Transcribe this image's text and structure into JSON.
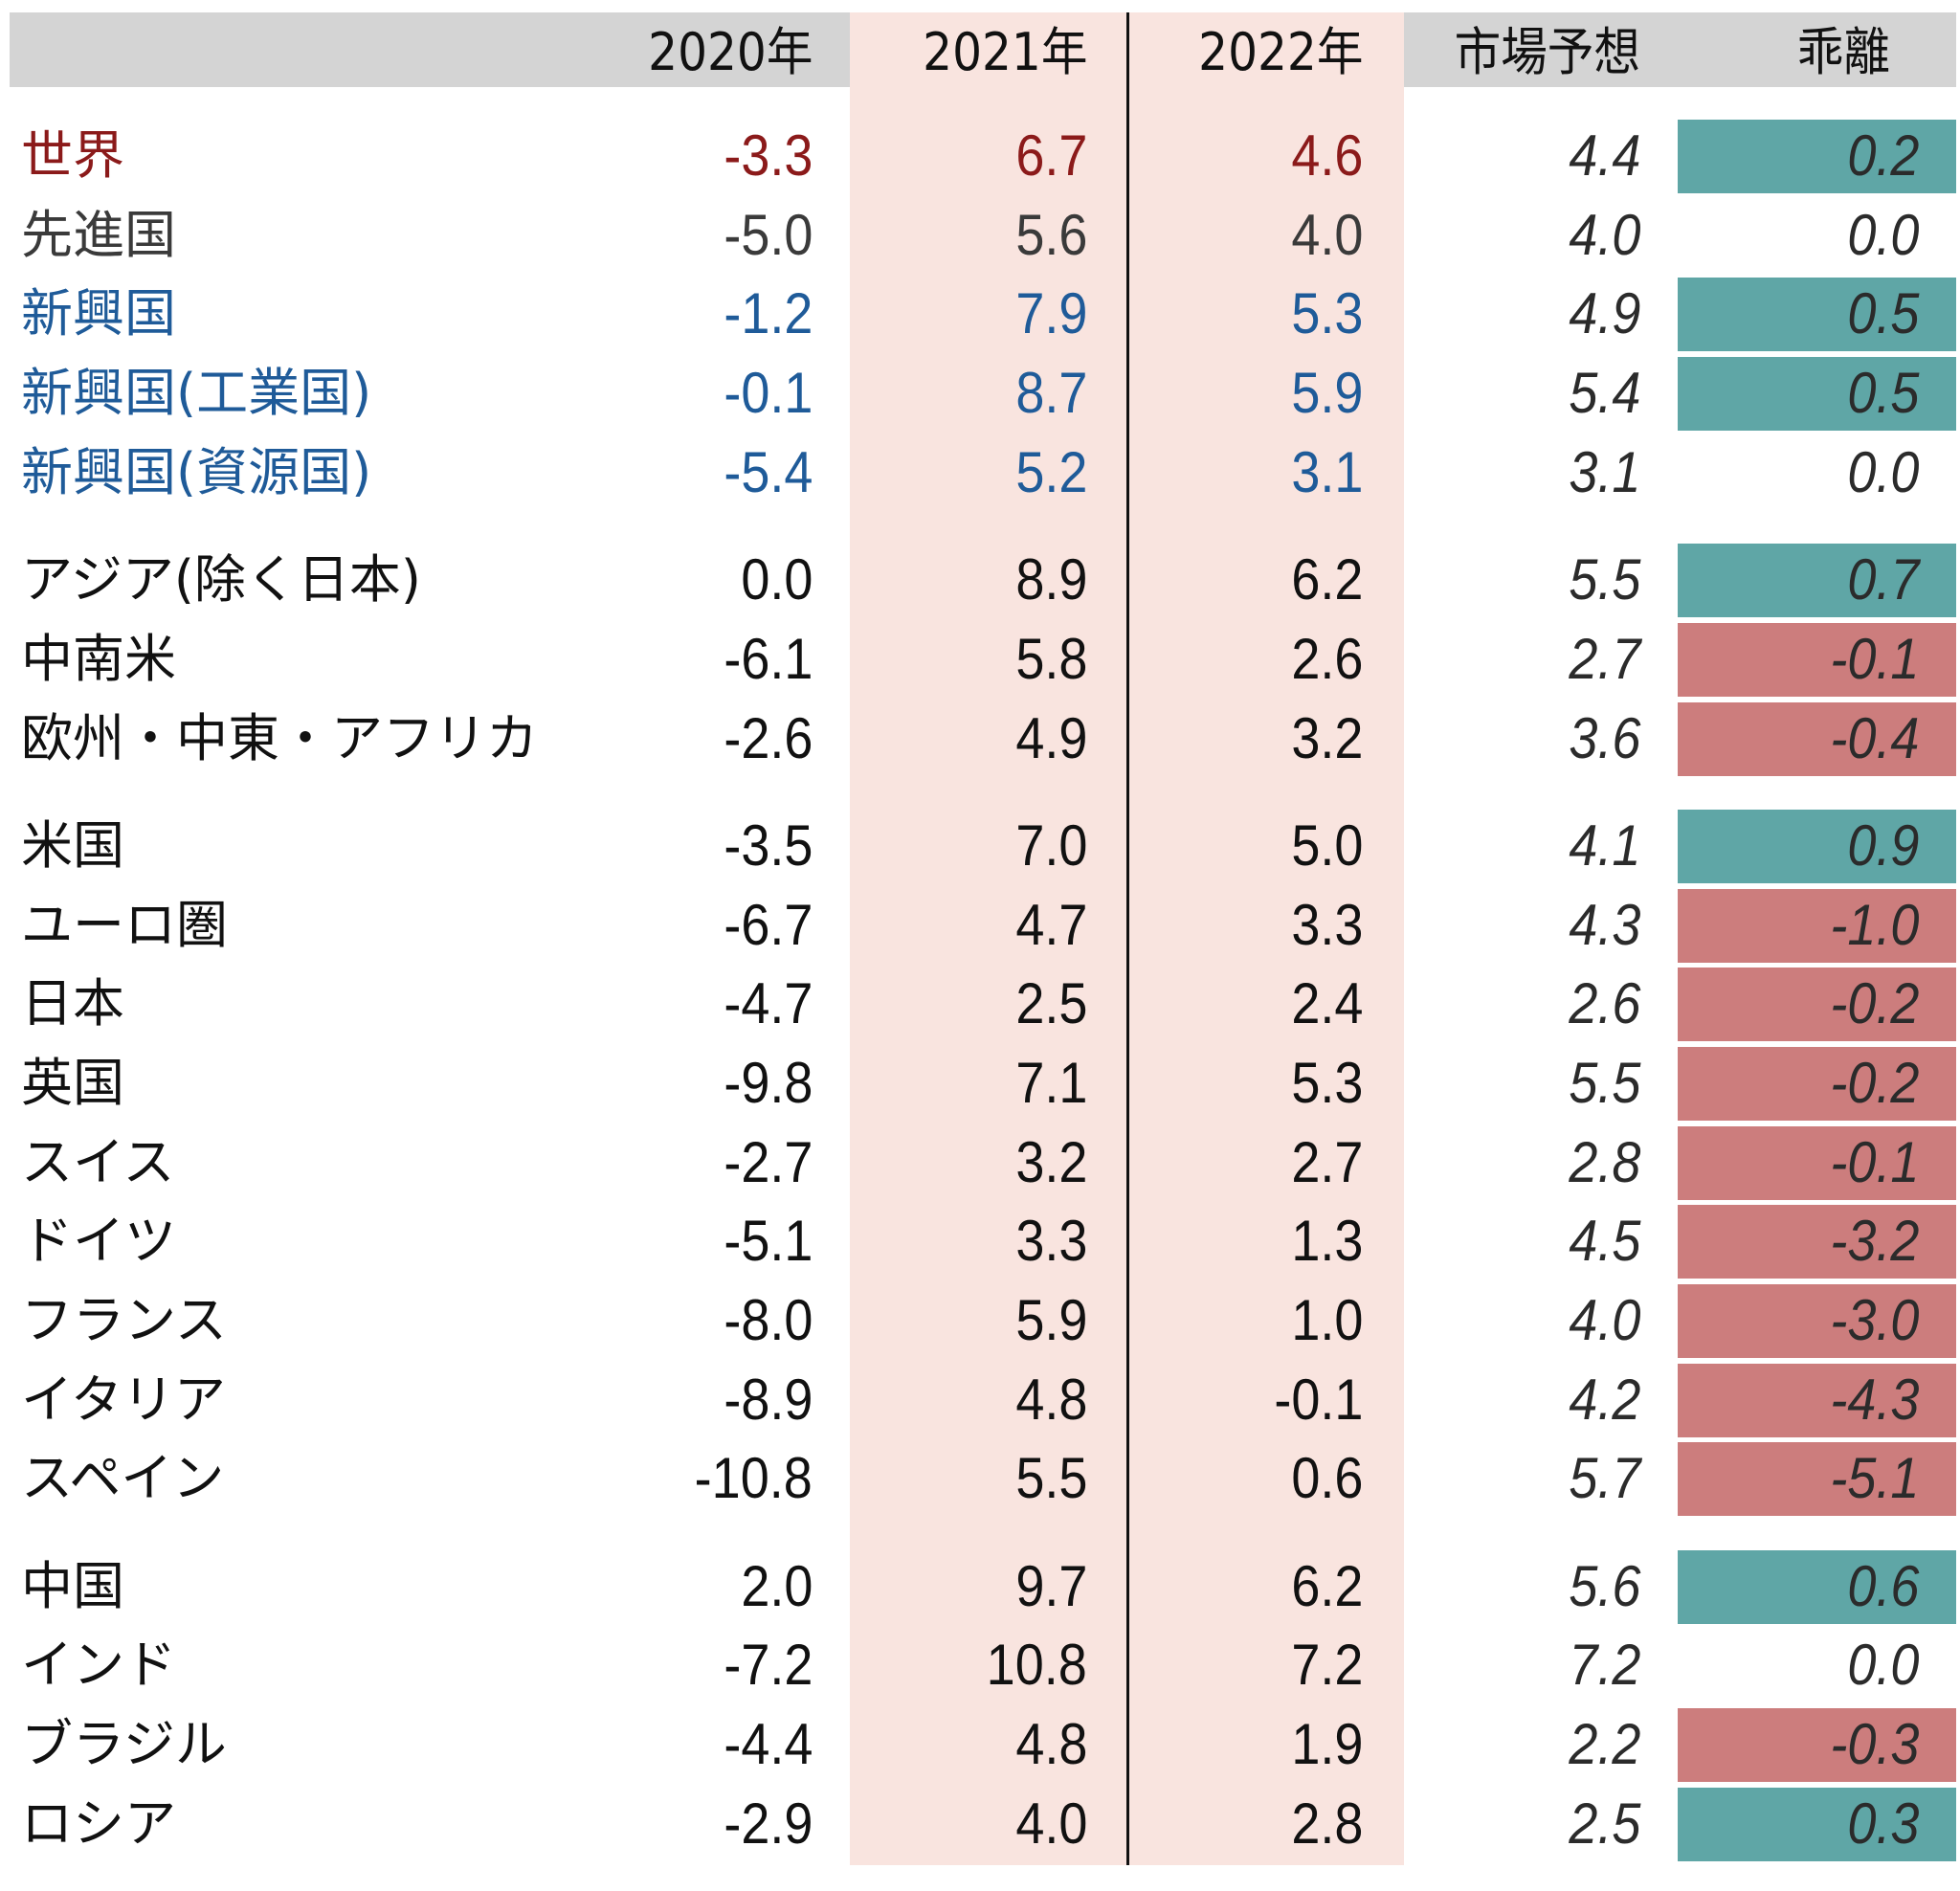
{
  "table": {
    "header": [
      "2020年",
      "2021年",
      "2022年",
      "市場予想",
      "乖離"
    ],
    "groups": [
      {
        "rows": [
          {
            "label": "世界",
            "color": "#8b1a1a",
            "cells": [
              "-3.3",
              "6.7",
              "4.6",
              "4.4",
              "0.2"
            ]
          },
          {
            "label": "先進国",
            "color": "#3a3a3a",
            "cells": [
              "-5.0",
              "5.6",
              "4.0",
              "4.0",
              "0.0"
            ]
          },
          {
            "label": "新興国",
            "color": "#1f5b99",
            "cells": [
              "-1.2",
              "7.9",
              "5.3",
              "4.9",
              "0.5"
            ]
          },
          {
            "label": "新興国(工業国)",
            "color": "#1f5b99",
            "cells": [
              "-0.1",
              "8.7",
              "5.9",
              "5.4",
              "0.5"
            ]
          },
          {
            "label": "新興国(資源国)",
            "color": "#1f5b99",
            "cells": [
              "-5.4",
              "5.2",
              "3.1",
              "3.1",
              "0.0"
            ]
          }
        ]
      },
      {
        "rows": [
          {
            "label": "アジア(除く日本)",
            "cells": [
              "0.0",
              "8.9",
              "6.2",
              "5.5",
              "0.7"
            ]
          },
          {
            "label": "中南米",
            "cells": [
              "-6.1",
              "5.8",
              "2.6",
              "2.7",
              "-0.1"
            ]
          },
          {
            "label": "欧州・中東・アフリカ",
            "cells": [
              "-2.6",
              "4.9",
              "3.2",
              "3.6",
              "-0.4"
            ]
          }
        ]
      },
      {
        "rows": [
          {
            "label": "米国",
            "cells": [
              "-3.5",
              "7.0",
              "5.0",
              "4.1",
              "0.9"
            ]
          },
          {
            "label": "ユーロ圏",
            "cells": [
              "-6.7",
              "4.7",
              "3.3",
              "4.3",
              "-1.0"
            ]
          },
          {
            "label": "日本",
            "cells": [
              "-4.7",
              "2.5",
              "2.4",
              "2.6",
              "-0.2"
            ]
          },
          {
            "label": "英国",
            "cells": [
              "-9.8",
              "7.1",
              "5.3",
              "5.5",
              "-0.2"
            ]
          },
          {
            "label": "スイス",
            "cells": [
              "-2.7",
              "3.2",
              "2.7",
              "2.8",
              "-0.1"
            ]
          },
          {
            "label": "ドイツ",
            "cells": [
              "-5.1",
              "3.3",
              "1.3",
              "4.5",
              "-3.2"
            ]
          },
          {
            "label": "フランス",
            "cells": [
              "-8.0",
              "5.9",
              "1.0",
              "4.0",
              "-3.0"
            ]
          },
          {
            "label": "イタリア",
            "cells": [
              "-8.9",
              "4.8",
              "-0.1",
              "4.2",
              "-4.3"
            ]
          },
          {
            "label": "スペイン",
            "cells": [
              "-10.8",
              "5.5",
              "0.6",
              "5.7",
              "-5.1"
            ]
          }
        ]
      },
      {
        "rows": [
          {
            "label": "中国",
            "cells": [
              "2.0",
              "9.7",
              "6.2",
              "5.6",
              "0.6"
            ]
          },
          {
            "label": "インド",
            "cells": [
              "-7.2",
              "10.8",
              "7.2",
              "7.2",
              "0.0"
            ]
          },
          {
            "label": "ブラジル",
            "cells": [
              "-4.4",
              "4.8",
              "1.9",
              "2.2",
              "-0.3"
            ]
          },
          {
            "label": "ロシア",
            "cells": [
              "-2.9",
              "4.0",
              "2.8",
              "2.5",
              "0.3"
            ]
          }
        ]
      }
    ]
  }
}
